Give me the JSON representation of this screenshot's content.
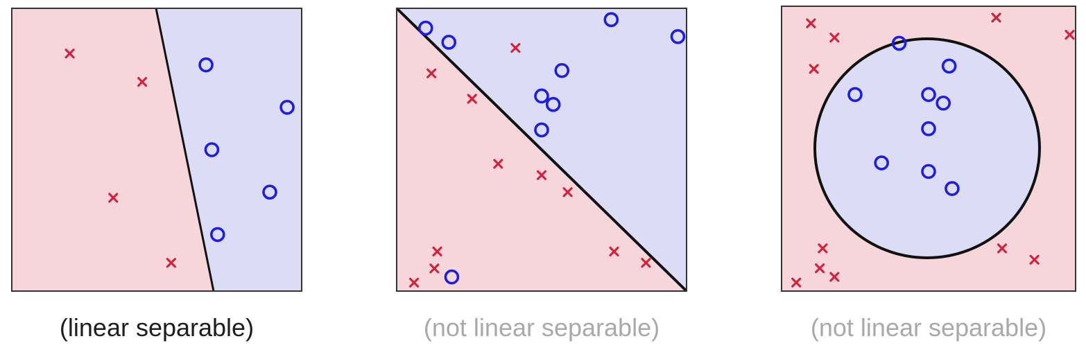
{
  "colors": {
    "red_region": "#f6d6da",
    "blue_region": "#dcdcf6",
    "cross": "#d0243e",
    "circle": "#1c1ee0",
    "boundary": "#111111",
    "caption_dark": "#1e1e1e",
    "caption_light": "#a9a9a9"
  },
  "panels": [
    {
      "caption": "(linear separable)",
      "boundary": "line",
      "crosses": [
        [
          0.2,
          0.84
        ],
        [
          0.45,
          0.74
        ],
        [
          0.35,
          0.33
        ],
        [
          0.55,
          0.1
        ]
      ],
      "circles": [
        [
          0.67,
          0.8
        ],
        [
          0.95,
          0.65
        ],
        [
          0.69,
          0.5
        ],
        [
          0.89,
          0.35
        ],
        [
          0.71,
          0.2
        ]
      ]
    },
    {
      "caption": "(not linear separable)",
      "boundary": "diagonal",
      "crosses": [
        [
          0.41,
          0.86
        ],
        [
          0.12,
          0.77
        ],
        [
          0.26,
          0.68
        ],
        [
          0.35,
          0.45
        ],
        [
          0.5,
          0.41
        ],
        [
          0.59,
          0.35
        ],
        [
          0.14,
          0.14
        ],
        [
          0.13,
          0.08
        ],
        [
          0.06,
          0.03
        ],
        [
          0.75,
          0.14
        ],
        [
          0.86,
          0.1
        ]
      ],
      "circles": [
        [
          0.1,
          0.93
        ],
        [
          0.18,
          0.88
        ],
        [
          0.74,
          0.96
        ],
        [
          0.97,
          0.9
        ],
        [
          0.57,
          0.78
        ],
        [
          0.5,
          0.69
        ],
        [
          0.54,
          0.66
        ],
        [
          0.5,
          0.57
        ],
        [
          0.19,
          0.05
        ]
      ]
    },
    {
      "caption": "(not linear separable)",
      "boundary": "circle",
      "crosses": [
        [
          0.1,
          0.94
        ],
        [
          0.18,
          0.89
        ],
        [
          0.11,
          0.78
        ],
        [
          0.98,
          0.9
        ],
        [
          0.73,
          0.96
        ],
        [
          0.14,
          0.15
        ],
        [
          0.13,
          0.08
        ],
        [
          0.18,
          0.05
        ],
        [
          0.05,
          0.03
        ],
        [
          0.75,
          0.15
        ],
        [
          0.86,
          0.11
        ]
      ],
      "circles": [
        [
          0.4,
          0.87
        ],
        [
          0.57,
          0.79
        ],
        [
          0.25,
          0.69
        ],
        [
          0.5,
          0.69
        ],
        [
          0.55,
          0.66
        ],
        [
          0.5,
          0.57
        ],
        [
          0.34,
          0.45
        ],
        [
          0.5,
          0.42
        ],
        [
          0.58,
          0.36
        ]
      ]
    }
  ]
}
